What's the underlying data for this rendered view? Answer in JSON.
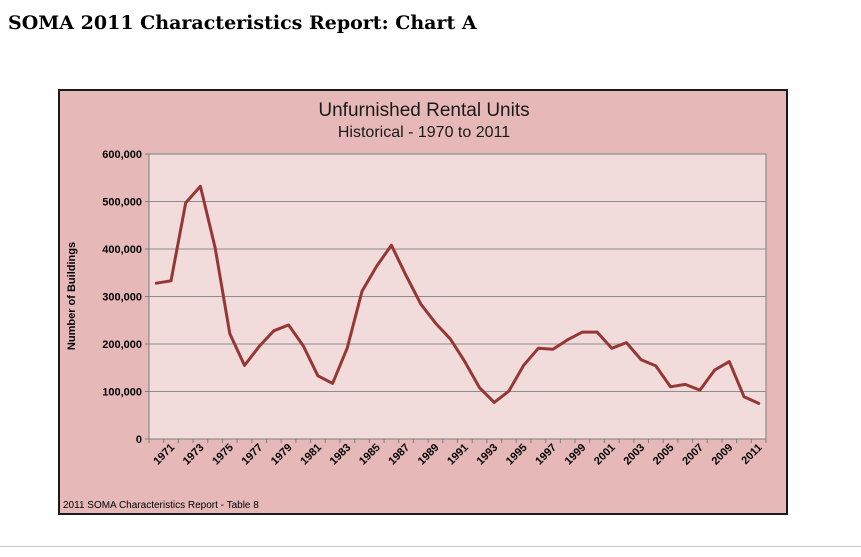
{
  "page": {
    "heading": "SOMA 2011 Characteristics Report: Chart A"
  },
  "chart_data": {
    "type": "line",
    "title": "Unfurnished Rental Units",
    "subtitle": "Historical - 1970 to 2011",
    "xlabel": "",
    "ylabel": "Number of Buildings",
    "source_note": "2011 SOMA Characteristics Report - Table 8",
    "ylim": [
      0,
      600000
    ],
    "yticks": [
      0,
      100000,
      200000,
      300000,
      400000,
      500000,
      600000
    ],
    "ytick_labels": [
      "0",
      "100,000",
      "200,000",
      "300,000",
      "400,000",
      "500,000",
      "600,000"
    ],
    "x": [
      1970,
      1971,
      1972,
      1973,
      1974,
      1975,
      1976,
      1977,
      1978,
      1979,
      1980,
      1981,
      1982,
      1983,
      1984,
      1985,
      1986,
      1987,
      1988,
      1989,
      1990,
      1991,
      1992,
      1993,
      1994,
      1995,
      1996,
      1997,
      1998,
      1999,
      2000,
      2001,
      2002,
      2003,
      2004,
      2005,
      2006,
      2007,
      2008,
      2009,
      2010,
      2011
    ],
    "xtick_labels": [
      "1971",
      "1973",
      "1975",
      "1977",
      "1979",
      "1981",
      "1983",
      "1985",
      "1987",
      "1989",
      "1991",
      "1993",
      "1995",
      "1997",
      "1999",
      "2001",
      "2003",
      "2005",
      "2007",
      "2009",
      "2011"
    ],
    "xtick_years": [
      1971,
      1973,
      1975,
      1977,
      1979,
      1981,
      1983,
      1985,
      1987,
      1989,
      1991,
      1993,
      1995,
      1997,
      1999,
      2001,
      2003,
      2005,
      2007,
      2009,
      2011
    ],
    "series": [
      {
        "name": "",
        "values": [
          328000,
          333000,
          497000,
          532000,
          403000,
          222000,
          155000,
          195000,
          228000,
          240000,
          196000,
          133000,
          117000,
          192000,
          311000,
          364000,
          408000,
          344000,
          284000,
          244000,
          211000,
          163000,
          108000,
          77000,
          101000,
          155000,
          191000,
          189000,
          209000,
          225000,
          225000,
          191000,
          203000,
          167000,
          154000,
          110000,
          115000,
          103000,
          145000,
          163000,
          89000,
          75000
        ]
      }
    ],
    "grid": true,
    "legend": "none",
    "colors": {
      "line": "#953735",
      "frame_bg": "#e6b8b7",
      "plot_bg": "#f2dcdb"
    }
  }
}
